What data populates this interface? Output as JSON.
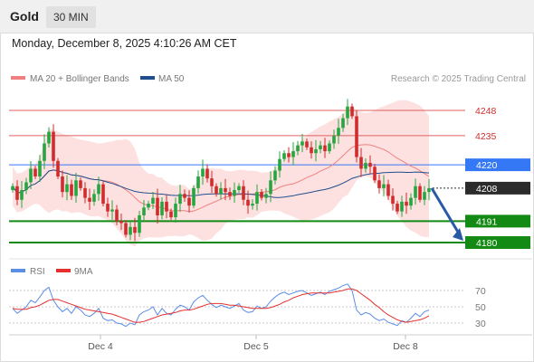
{
  "header": {
    "instrument": "Gold",
    "timeframe": "30 MIN",
    "datetime": "Monday, December 8, 2025 4:10:26 AM CET"
  },
  "legend": {
    "ma20_label": "MA 20 + Bollinger Bands",
    "ma50_label": "MA 50",
    "credit": "Research © 2025 Trading Central"
  },
  "rsi_legend": {
    "rsi_label": "RSI",
    "ma9_label": "9MA"
  },
  "colors": {
    "ma20": "#f08080",
    "ma50": "#1f4e8c",
    "band_fill": "#fde1e1",
    "up_candle": "#26a640",
    "down_candle": "#d22b2b",
    "level_blue": "#3478f6",
    "level_green": "#138a13",
    "level_red": "#e06060",
    "current": "#2b2b2b",
    "rsi": "#5b8ee6",
    "rsi_ma": "#e53030",
    "arrow": "#2a5aa5"
  },
  "chart_data": [
    {
      "type": "candlestick",
      "title": "Gold 30 MIN",
      "x_tick_labels": [
        "Dec 4",
        "Dec 5",
        "Dec 8"
      ],
      "y_levels": [
        {
          "value": 4248,
          "label": "4248",
          "kind": "resistance"
        },
        {
          "value": 4235,
          "label": "4235",
          "kind": "resistance"
        },
        {
          "value": 4220,
          "label": "4220",
          "kind": "pivot"
        },
        {
          "value": 4208,
          "label": "4208",
          "kind": "current"
        },
        {
          "value": 4191,
          "label": "4191",
          "kind": "support"
        },
        {
          "value": 4180,
          "label": "4180",
          "kind": "support"
        }
      ],
      "ylim": [
        4174,
        4265
      ],
      "series": [
        {
          "name": "MA 20 + Bollinger Bands"
        },
        {
          "name": "MA 50"
        }
      ],
      "close": [
        4209,
        4202,
        4207,
        4211,
        4218,
        4214,
        4222,
        4231,
        4237,
        4222,
        4214,
        4206,
        4210,
        4204,
        4212,
        4208,
        4203,
        4201,
        4205,
        4210,
        4200,
        4196,
        4197,
        4191,
        4190,
        4184,
        4188,
        4185,
        4194,
        4198,
        4200,
        4203,
        4194,
        4201,
        4196,
        4193,
        4200,
        4205,
        4203,
        4199,
        4208,
        4214,
        4218,
        4213,
        4209,
        4205,
        4208,
        4206,
        4204,
        4207,
        4209,
        4202,
        4199,
        4200,
        4206,
        4203,
        4205,
        4212,
        4217,
        4223,
        4226,
        4224,
        4227,
        4230,
        4232,
        4229,
        4226,
        4228,
        4230,
        4227,
        4231,
        4235,
        4239,
        4244,
        4250,
        4245,
        4224,
        4218,
        4221,
        4219,
        4212,
        4208,
        4210,
        4204,
        4200,
        4196,
        4201,
        4199,
        4203,
        4209,
        4202,
        4206,
        4208
      ],
      "outlook": {
        "direction": "down",
        "target": 4180
      }
    },
    {
      "type": "line",
      "title": "RSI",
      "y_tick_labels": [
        "70",
        "50",
        "30"
      ],
      "ylim": [
        20,
        80
      ],
      "series": [
        {
          "name": "RSI",
          "values": [
            48,
            42,
            46,
            50,
            58,
            55,
            62,
            70,
            74,
            58,
            50,
            44,
            48,
            42,
            50,
            46,
            40,
            38,
            42,
            48,
            36,
            33,
            34,
            30,
            29,
            26,
            30,
            28,
            40,
            44,
            46,
            50,
            40,
            48,
            42,
            40,
            47,
            52,
            50,
            46,
            56,
            61,
            64,
            58,
            53,
            49,
            52,
            50,
            48,
            51,
            54,
            46,
            43,
            44,
            51,
            48,
            50,
            57,
            62,
            66,
            68,
            65,
            67,
            69,
            70,
            67,
            64,
            66,
            68,
            65,
            69,
            71,
            73,
            76,
            78,
            70,
            46,
            40,
            43,
            41,
            36,
            33,
            35,
            31,
            29,
            27,
            33,
            31,
            36,
            42,
            38,
            44,
            46
          ]
        },
        {
          "name": "9MA",
          "values": [
            48,
            47,
            47,
            47,
            49,
            50,
            52,
            55,
            58,
            59,
            59,
            57,
            55,
            53,
            51,
            49,
            47,
            46,
            45,
            44,
            43,
            42,
            41,
            39,
            37,
            35,
            33,
            31,
            31,
            32,
            34,
            36,
            38,
            40,
            41,
            42,
            43,
            45,
            46,
            46,
            47,
            49,
            51,
            53,
            54,
            54,
            54,
            53,
            52,
            52,
            51,
            50,
            49,
            48,
            48,
            48,
            48,
            49,
            51,
            53,
            56,
            58,
            61,
            63,
            65,
            66,
            67,
            67,
            67,
            67,
            67,
            68,
            69,
            70,
            72,
            72,
            70,
            66,
            62,
            58,
            53,
            49,
            44,
            40,
            37,
            34,
            32,
            31,
            32,
            33,
            34,
            36,
            39
          ]
        }
      ]
    }
  ]
}
